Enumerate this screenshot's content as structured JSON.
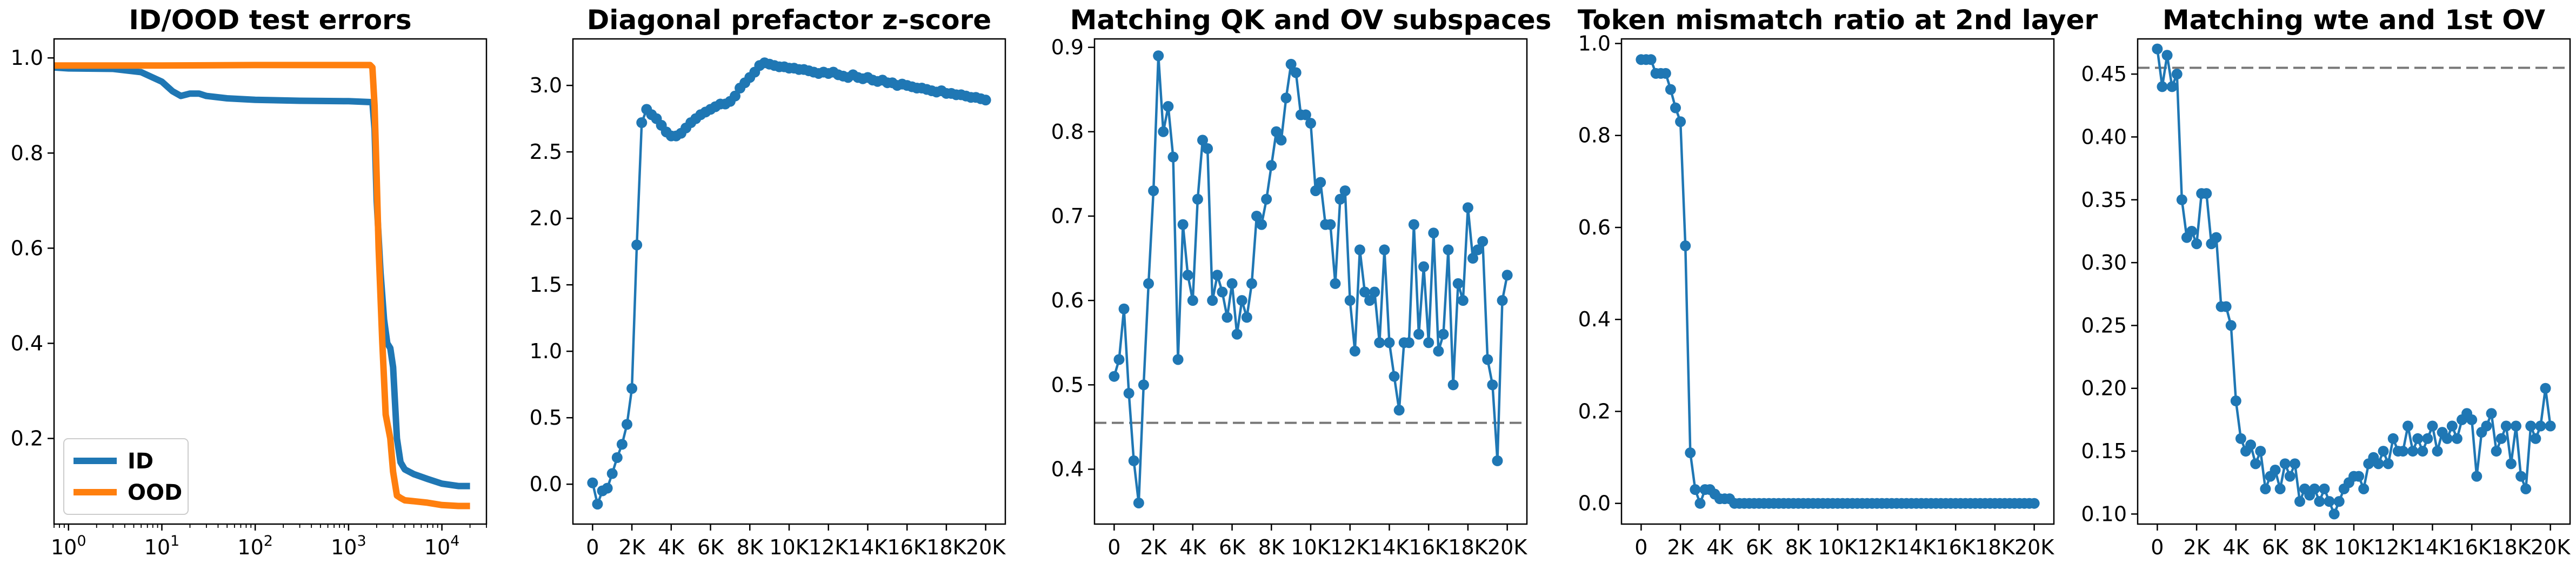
{
  "colors": {
    "series_blue": "#1f77b4",
    "series_orange": "#ff7f0e",
    "reference_line": "#777777"
  },
  "chart_data": [
    {
      "type": "line",
      "title": "ID/OOD test errors",
      "xscale": "log",
      "xlim": [
        0.7,
        30000
      ],
      "ylim": [
        0.02,
        1.04
      ],
      "xtick_values": [
        1,
        10,
        100,
        1000,
        10000
      ],
      "xtick_labels": [
        [
          "10",
          "0"
        ],
        [
          "10",
          "1"
        ],
        [
          "10",
          "2"
        ],
        [
          "10",
          "3"
        ],
        [
          "10",
          "4"
        ]
      ],
      "ytick_values": [
        0.2,
        0.4,
        0.6,
        0.8,
        1.0
      ],
      "ytick_labels": [
        "0.2",
        "0.4",
        "0.6",
        "0.8",
        "1.0"
      ],
      "legend": "lower-left",
      "grid": false,
      "series": [
        {
          "name": "ID",
          "color": "#1f77b4",
          "x": [
            0.7,
            1,
            3,
            6,
            10,
            13,
            16,
            20,
            25,
            30,
            50,
            100,
            300,
            1000,
            1800,
            1900,
            2000,
            2200,
            2400,
            2600,
            2800,
            3000,
            3300,
            3600,
            4000,
            5000,
            7000,
            10000,
            15000,
            20000
          ],
          "y": [
            0.98,
            0.978,
            0.977,
            0.97,
            0.95,
            0.93,
            0.92,
            0.925,
            0.925,
            0.92,
            0.915,
            0.912,
            0.91,
            0.909,
            0.907,
            0.85,
            0.7,
            0.55,
            0.45,
            0.4,
            0.39,
            0.35,
            0.2,
            0.15,
            0.135,
            0.125,
            0.115,
            0.105,
            0.1,
            0.1
          ]
        },
        {
          "name": "OOD",
          "color": "#ff7f0e",
          "x": [
            0.7,
            1,
            10,
            100,
            1000,
            1700,
            1800,
            1900,
            2000,
            2100,
            2300,
            2500,
            2800,
            3000,
            3300,
            3600,
            4000,
            5000,
            7000,
            10000,
            15000,
            20000
          ],
          "y": [
            0.984,
            0.984,
            0.984,
            0.985,
            0.985,
            0.985,
            0.98,
            0.9,
            0.75,
            0.6,
            0.4,
            0.25,
            0.2,
            0.13,
            0.08,
            0.075,
            0.07,
            0.068,
            0.065,
            0.06,
            0.058,
            0.058
          ]
        }
      ]
    },
    {
      "type": "line",
      "title": "Diagonal prefactor z-score",
      "xlim": [
        -1000,
        21000
      ],
      "ylim": [
        -0.3,
        3.35
      ],
      "xtick_values": [
        0,
        2000,
        4000,
        6000,
        8000,
        10000,
        12000,
        14000,
        16000,
        18000,
        20000
      ],
      "xtick_labels": [
        "0",
        "2K",
        "4K",
        "6K",
        "8K",
        "10K",
        "12K",
        "14K",
        "16K",
        "18K",
        "20K"
      ],
      "ytick_values": [
        0.0,
        0.5,
        1.0,
        1.5,
        2.0,
        2.5,
        3.0
      ],
      "ytick_labels": [
        "0.0",
        "0.5",
        "1.0",
        "1.5",
        "2.0",
        "2.5",
        "3.0"
      ],
      "grid": false,
      "series": [
        {
          "color": "#1f77b4",
          "markers": true,
          "x": [
            0,
            250,
            500,
            750,
            1000,
            1250,
            1500,
            1750,
            2000,
            2250,
            2500,
            2750,
            3000,
            3250,
            3500,
            3750,
            4000,
            4250,
            4500,
            4750,
            5000,
            5250,
            5500,
            5750,
            6000,
            6250,
            6500,
            6750,
            7000,
            7250,
            7500,
            7750,
            8000,
            8250,
            8500,
            8750,
            9000,
            9250,
            9500,
            9750,
            10000,
            10250,
            10500,
            10750,
            11000,
            11250,
            11500,
            11750,
            12000,
            12250,
            12500,
            12750,
            13000,
            13250,
            13500,
            13750,
            14000,
            14250,
            14500,
            14750,
            15000,
            15250,
            15500,
            15750,
            16000,
            16250,
            16500,
            16750,
            17000,
            17250,
            17500,
            17750,
            18000,
            18250,
            18500,
            18750,
            19000,
            19250,
            19500,
            19750,
            20000
          ],
          "y": [
            0.01,
            -0.15,
            -0.05,
            -0.03,
            0.08,
            0.2,
            0.3,
            0.45,
            0.72,
            1.8,
            2.72,
            2.82,
            2.78,
            2.75,
            2.7,
            2.65,
            2.62,
            2.62,
            2.64,
            2.68,
            2.72,
            2.75,
            2.78,
            2.8,
            2.82,
            2.84,
            2.86,
            2.86,
            2.88,
            2.92,
            2.98,
            3.02,
            3.06,
            3.1,
            3.15,
            3.17,
            3.16,
            3.15,
            3.14,
            3.14,
            3.13,
            3.13,
            3.12,
            3.12,
            3.11,
            3.1,
            3.09,
            3.1,
            3.09,
            3.1,
            3.08,
            3.07,
            3.06,
            3.08,
            3.06,
            3.05,
            3.06,
            3.04,
            3.03,
            3.04,
            3.02,
            3.02,
            3.0,
            3.01,
            3.0,
            2.99,
            2.98,
            2.98,
            2.97,
            2.96,
            2.95,
            2.96,
            2.94,
            2.94,
            2.93,
            2.93,
            2.92,
            2.91,
            2.91,
            2.9,
            2.89
          ]
        }
      ]
    },
    {
      "type": "line",
      "title": "Matching QK and OV subspaces",
      "xlim": [
        -1000,
        21000
      ],
      "ylim": [
        0.335,
        0.91
      ],
      "xtick_values": [
        0,
        2000,
        4000,
        6000,
        8000,
        10000,
        12000,
        14000,
        16000,
        18000,
        20000
      ],
      "xtick_labels": [
        "0",
        "2K",
        "4K",
        "6K",
        "8K",
        "10K",
        "12K",
        "14K",
        "16K",
        "18K",
        "20K"
      ],
      "ytick_values": [
        0.4,
        0.5,
        0.6,
        0.7,
        0.8,
        0.9
      ],
      "ytick_labels": [
        "0.4",
        "0.5",
        "0.6",
        "0.7",
        "0.8",
        "0.9"
      ],
      "reference_line": 0.455,
      "grid": false,
      "series": [
        {
          "color": "#1f77b4",
          "markers": true,
          "x": [
            0,
            250,
            500,
            750,
            1000,
            1250,
            1500,
            1750,
            2000,
            2250,
            2500,
            2750,
            3000,
            3250,
            3500,
            3750,
            4000,
            4250,
            4500,
            4750,
            5000,
            5250,
            5500,
            5750,
            6000,
            6250,
            6500,
            6750,
            7000,
            7250,
            7500,
            7750,
            8000,
            8250,
            8500,
            8750,
            9000,
            9250,
            9500,
            9750,
            10000,
            10250,
            10500,
            10750,
            11000,
            11250,
            11500,
            11750,
            12000,
            12250,
            12500,
            12750,
            13000,
            13250,
            13500,
            13750,
            14000,
            14250,
            14500,
            14750,
            15000,
            15250,
            15500,
            15750,
            16000,
            16250,
            16500,
            16750,
            17000,
            17250,
            17500,
            17750,
            18000,
            18250,
            18500,
            18750,
            19000,
            19250,
            19500,
            19750,
            20000
          ],
          "y": [
            0.51,
            0.53,
            0.59,
            0.49,
            0.41,
            0.36,
            0.5,
            0.62,
            0.73,
            0.89,
            0.8,
            0.83,
            0.77,
            0.53,
            0.69,
            0.63,
            0.6,
            0.72,
            0.79,
            0.78,
            0.6,
            0.63,
            0.61,
            0.58,
            0.62,
            0.56,
            0.6,
            0.58,
            0.62,
            0.7,
            0.69,
            0.72,
            0.76,
            0.8,
            0.79,
            0.84,
            0.88,
            0.87,
            0.82,
            0.82,
            0.81,
            0.73,
            0.74,
            0.69,
            0.69,
            0.62,
            0.72,
            0.73,
            0.6,
            0.54,
            0.66,
            0.61,
            0.6,
            0.61,
            0.55,
            0.66,
            0.55,
            0.51,
            0.47,
            0.55,
            0.55,
            0.69,
            0.56,
            0.64,
            0.55,
            0.68,
            0.54,
            0.56,
            0.66,
            0.5,
            0.62,
            0.6,
            0.71,
            0.65,
            0.66,
            0.67,
            0.53,
            0.5,
            0.41,
            0.6,
            0.63
          ]
        }
      ]
    },
    {
      "type": "line",
      "title": "Token mismatch ratio at 2nd layer",
      "xlim": [
        -1000,
        21000
      ],
      "ylim": [
        -0.045,
        1.01
      ],
      "xtick_values": [
        0,
        2000,
        4000,
        6000,
        8000,
        10000,
        12000,
        14000,
        16000,
        18000,
        20000
      ],
      "xtick_labels": [
        "0",
        "2K",
        "4K",
        "6K",
        "8K",
        "10K",
        "12K",
        "14K",
        "16K",
        "18K",
        "20K"
      ],
      "ytick_values": [
        0.0,
        0.2,
        0.4,
        0.6,
        0.8,
        1.0
      ],
      "ytick_labels": [
        "0.0",
        "0.2",
        "0.4",
        "0.6",
        "0.8",
        "1.0"
      ],
      "grid": false,
      "series": [
        {
          "color": "#1f77b4",
          "markers": true,
          "x": [
            0,
            250,
            500,
            750,
            1000,
            1250,
            1500,
            1750,
            2000,
            2250,
            2500,
            2750,
            3000,
            3250,
            3500,
            3750,
            4000,
            4250,
            4500,
            4750,
            5000,
            5250,
            5500,
            5750,
            6000,
            6250,
            6500,
            6750,
            7000,
            7250,
            7500,
            7750,
            8000,
            8250,
            8500,
            8750,
            9000,
            9250,
            9500,
            9750,
            10000,
            10250,
            10500,
            10750,
            11000,
            11250,
            11500,
            11750,
            12000,
            12250,
            12500,
            12750,
            13000,
            13250,
            13500,
            13750,
            14000,
            14250,
            14500,
            14750,
            15000,
            15250,
            15500,
            15750,
            16000,
            16250,
            16500,
            16750,
            17000,
            17250,
            17500,
            17750,
            18000,
            18250,
            18500,
            18750,
            19000,
            19250,
            19500,
            19750,
            20000
          ],
          "y": [
            0.965,
            0.965,
            0.965,
            0.935,
            0.935,
            0.935,
            0.9,
            0.86,
            0.83,
            0.56,
            0.11,
            0.03,
            0.0,
            0.03,
            0.03,
            0.02,
            0.01,
            0.01,
            0.01,
            0.0,
            0.0,
            0.0,
            0.0,
            0.0,
            0.0,
            0.0,
            0.0,
            0.0,
            0.0,
            0.0,
            0.0,
            0.0,
            0.0,
            0.0,
            0.0,
            0.0,
            0.0,
            0.0,
            0.0,
            0.0,
            0.0,
            0.0,
            0.0,
            0.0,
            0.0,
            0.0,
            0.0,
            0.0,
            0.0,
            0.0,
            0.0,
            0.0,
            0.0,
            0.0,
            0.0,
            0.0,
            0.0,
            0.0,
            0.0,
            0.0,
            0.0,
            0.0,
            0.0,
            0.0,
            0.0,
            0.0,
            0.0,
            0.0,
            0.0,
            0.0,
            0.0,
            0.0,
            0.0,
            0.0,
            0.0,
            0.0,
            0.0,
            0.0,
            0.0,
            0.0,
            0.0
          ]
        }
      ]
    },
    {
      "type": "line",
      "title": "Matching wte and 1st OV",
      "xlim": [
        -1000,
        21000
      ],
      "ylim": [
        0.092,
        0.478
      ],
      "xtick_values": [
        0,
        2000,
        4000,
        6000,
        8000,
        10000,
        12000,
        14000,
        16000,
        18000,
        20000
      ],
      "xtick_labels": [
        "0",
        "2K",
        "4K",
        "6K",
        "8K",
        "10K",
        "12K",
        "14K",
        "16K",
        "18K",
        "20K"
      ],
      "ytick_values": [
        0.1,
        0.15,
        0.2,
        0.25,
        0.3,
        0.35,
        0.4,
        0.45
      ],
      "ytick_labels": [
        "0.10",
        "0.15",
        "0.20",
        "0.25",
        "0.30",
        "0.35",
        "0.40",
        "0.45"
      ],
      "reference_line": 0.455,
      "grid": false,
      "series": [
        {
          "color": "#1f77b4",
          "markers": true,
          "x": [
            0,
            250,
            500,
            750,
            1000,
            1250,
            1500,
            1750,
            2000,
            2250,
            2500,
            2750,
            3000,
            3250,
            3500,
            3750,
            4000,
            4250,
            4500,
            4750,
            5000,
            5250,
            5500,
            5750,
            6000,
            6250,
            6500,
            6750,
            7000,
            7250,
            7500,
            7750,
            8000,
            8250,
            8500,
            8750,
            9000,
            9250,
            9500,
            9750,
            10000,
            10250,
            10500,
            10750,
            11000,
            11250,
            11500,
            11750,
            12000,
            12250,
            12500,
            12750,
            13000,
            13250,
            13500,
            13750,
            14000,
            14250,
            14500,
            14750,
            15000,
            15250,
            15500,
            15750,
            16000,
            16250,
            16500,
            16750,
            17000,
            17250,
            17500,
            17750,
            18000,
            18250,
            18500,
            18750,
            19000,
            19250,
            19500,
            19750,
            20000
          ],
          "y": [
            0.47,
            0.44,
            0.465,
            0.44,
            0.45,
            0.35,
            0.32,
            0.325,
            0.315,
            0.355,
            0.355,
            0.315,
            0.32,
            0.265,
            0.265,
            0.25,
            0.19,
            0.16,
            0.15,
            0.155,
            0.14,
            0.15,
            0.12,
            0.13,
            0.135,
            0.12,
            0.14,
            0.13,
            0.14,
            0.11,
            0.12,
            0.115,
            0.12,
            0.11,
            0.12,
            0.11,
            0.1,
            0.11,
            0.12,
            0.125,
            0.13,
            0.13,
            0.12,
            0.14,
            0.145,
            0.14,
            0.15,
            0.14,
            0.16,
            0.15,
            0.15,
            0.17,
            0.15,
            0.16,
            0.15,
            0.16,
            0.17,
            0.15,
            0.165,
            0.16,
            0.17,
            0.16,
            0.175,
            0.18,
            0.175,
            0.13,
            0.165,
            0.17,
            0.18,
            0.15,
            0.16,
            0.17,
            0.14,
            0.17,
            0.13,
            0.12,
            0.17,
            0.16,
            0.17,
            0.2,
            0.17
          ]
        }
      ]
    }
  ]
}
